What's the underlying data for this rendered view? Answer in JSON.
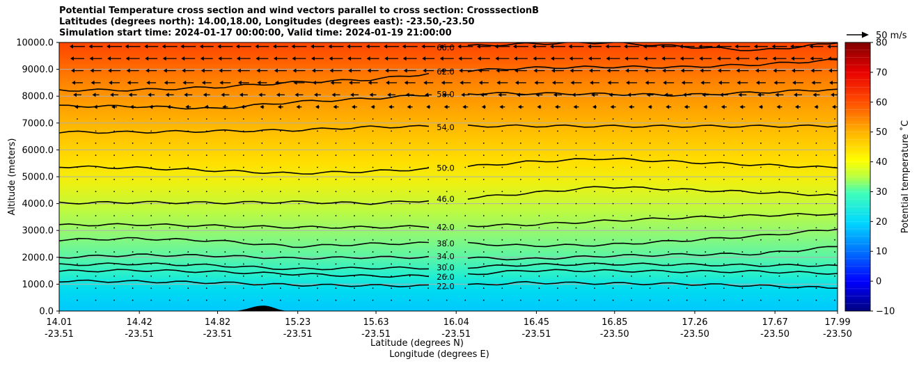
{
  "title_lines": [
    "Potential Temperature cross section and wind vectors parallel to cross section: CrosssectionB",
    "Latitudes (degrees north): 14.00,18.00, Longitudes (degrees east): -23.50,-23.50",
    "Simulation start time: 2024-01-17 00:00:00, Valid time: 2024-01-19 21:00:00"
  ],
  "chart_data": {
    "type": "heatmap",
    "title": "Potential Temperature cross section and wind vectors parallel to cross section: CrosssectionB",
    "xlabel": "Latitude (degrees N)",
    "xlabel2": "Longitude (degrees E)",
    "ylabel": "Altitude (meters)",
    "ylim": [
      0,
      10000
    ],
    "xlim": [
      14.01,
      17.99
    ],
    "y_ticks": [
      "0.0",
      "1000.0",
      "2000.0",
      "3000.0",
      "4000.0",
      "5000.0",
      "6000.0",
      "7000.0",
      "8000.0",
      "9000.0",
      "10000.0"
    ],
    "x_ticks": [
      {
        "lat": "14.01",
        "lon": "-23.51"
      },
      {
        "lat": "14.42",
        "lon": "-23.51"
      },
      {
        "lat": "14.82",
        "lon": "-23.51"
      },
      {
        "lat": "15.23",
        "lon": "-23.51"
      },
      {
        "lat": "15.63",
        "lon": "-23.51"
      },
      {
        "lat": "16.04",
        "lon": "-23.51"
      },
      {
        "lat": "16.45",
        "lon": "-23.51"
      },
      {
        "lat": "16.85",
        "lon": "-23.50"
      },
      {
        "lat": "17.26",
        "lon": "-23.50"
      },
      {
        "lat": "17.67",
        "lon": "-23.50"
      },
      {
        "lat": "17.99",
        "lon": "-23.50"
      }
    ],
    "colorbar": {
      "label": "Potential temperature ˚C",
      "min": -10,
      "max": 80,
      "ticks": [
        "−10",
        "0",
        "10",
        "20",
        "30",
        "40",
        "50",
        "60",
        "70",
        "80"
      ]
    },
    "contours": [
      {
        "value": 22.0,
        "label": "22.0",
        "altitudes": [
          1120,
          1100,
          1060,
          970,
          950,
          930,
          1060,
          1030,
          1010,
          940,
          850
        ]
      },
      {
        "value": 26.0,
        "label": "26.0",
        "altitudes": [
          1480,
          1520,
          1460,
          1380,
          1300,
          1310,
          1510,
          1500,
          1470,
          1470,
          1400
        ]
      },
      {
        "value": 30.0,
        "label": "30.0",
        "altitudes": [
          1720,
          1760,
          1700,
          1560,
          1600,
          1600,
          1720,
          1750,
          1730,
          1700,
          1700
        ]
      },
      {
        "value": 34.0,
        "label": "34.0",
        "altitudes": [
          2000,
          2090,
          2060,
          1960,
          2000,
          2000,
          1930,
          2050,
          2100,
          2130,
          2400
        ]
      },
      {
        "value": 38.0,
        "label": "38.0",
        "altitudes": [
          2650,
          2700,
          2620,
          2400,
          2500,
          2540,
          2430,
          2460,
          2620,
          2800,
          3050
        ]
      },
      {
        "value": 42.0,
        "label": "42.0",
        "altitudes": [
          3200,
          3220,
          3170,
          3120,
          3120,
          3160,
          3210,
          3350,
          3470,
          3560,
          3620
        ]
      },
      {
        "value": 46.0,
        "label": "46.0",
        "altitudes": [
          4020,
          4050,
          4030,
          4060,
          4010,
          4150,
          4380,
          4630,
          4520,
          4420,
          4300
        ]
      },
      {
        "value": 50.0,
        "label": "50.0",
        "altitudes": [
          5380,
          5330,
          5230,
          5120,
          5200,
          5320,
          5550,
          5680,
          5550,
          5440,
          5330
        ]
      },
      {
        "value": 54.0,
        "label": "54.0",
        "altitudes": [
          6660,
          6660,
          6700,
          6730,
          6850,
          6880,
          6890,
          6880,
          6880,
          6880,
          6890
        ]
      },
      {
        "value": 58.0,
        "label": "58.0",
        "altitudes": [
          7630,
          7620,
          7530,
          7780,
          7910,
          8100,
          8100,
          8080,
          8040,
          8140,
          8260
        ]
      },
      {
        "value": 62.0,
        "label": "62.0",
        "altitudes": [
          8220,
          8230,
          8330,
          8510,
          8620,
          8910,
          9050,
          9090,
          9080,
          9180,
          9350
        ]
      },
      {
        "value": 66.0,
        "label": "66.0",
        "altitudes": [
          null,
          null,
          null,
          null,
          null,
          9840,
          9950,
          10000,
          9850,
          9700,
          9980
        ]
      }
    ],
    "wind_reference": "50 m/s",
    "terrain_peak": {
      "lat": 15.23,
      "altitude": 200
    }
  }
}
